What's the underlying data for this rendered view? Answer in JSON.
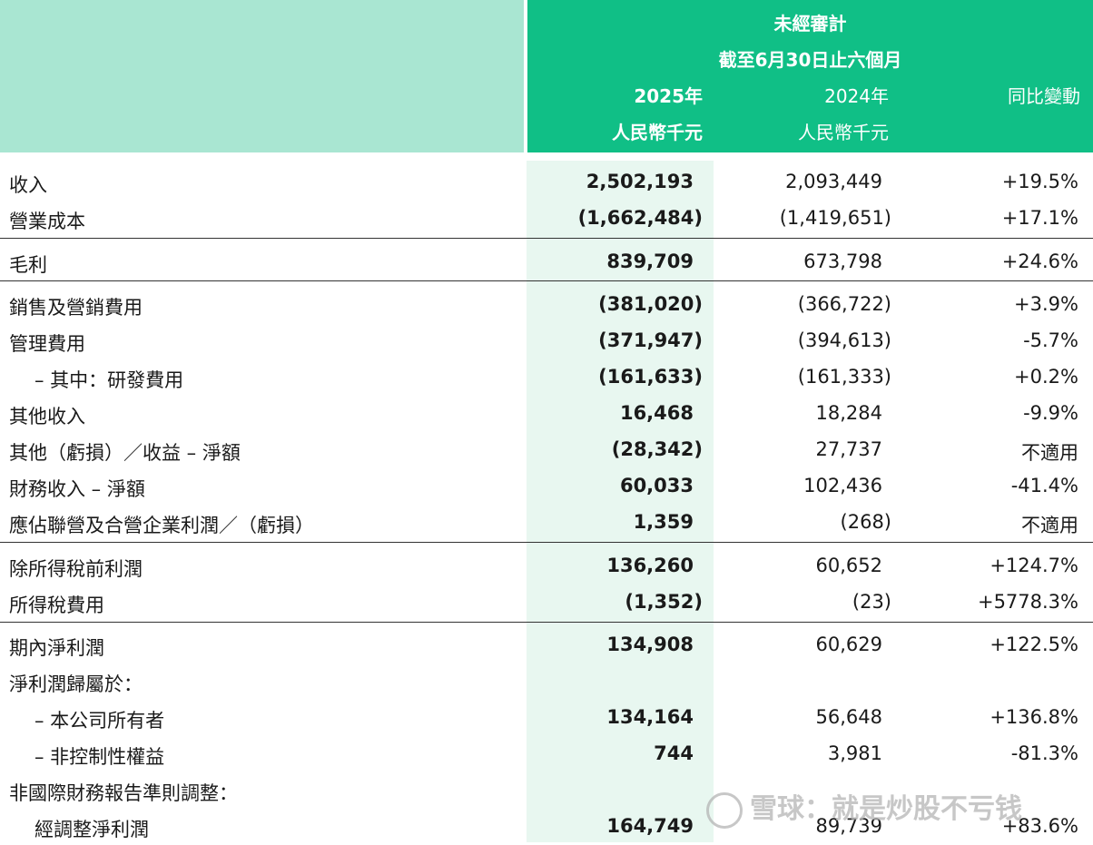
{
  "header": {
    "line1": "未經審計",
    "line2": "截至6月30日止六個月",
    "col_2025_year": "2025年",
    "col_2025_unit": "人民幣千元",
    "col_2024_year": "2024年",
    "col_2024_unit": "人民幣千元",
    "col_yoy": "同比變動"
  },
  "rows": [
    {
      "label": "收入",
      "v2025": "2,502,193",
      "v2024": "2,093,449",
      "yoy": "+19.5%"
    },
    {
      "label": "營業成本",
      "v2025": "(1,662,484)",
      "v2024": "(1,419,651)",
      "yoy": "+17.1%"
    },
    {
      "label": "毛利",
      "v2025": "839,709",
      "v2024": "673,798",
      "yoy": "+24.6%"
    },
    {
      "label": "銷售及營銷費用",
      "v2025": "(381,020)",
      "v2024": "(366,722)",
      "yoy": "+3.9%"
    },
    {
      "label": "管理費用",
      "v2025": "(371,947)",
      "v2024": "(394,613)",
      "yoy": "-5.7%"
    },
    {
      "label": "– 其中：研發費用",
      "v2025": "(161,633)",
      "v2024": "(161,333)",
      "yoy": "+0.2%"
    },
    {
      "label": "其他收入",
      "v2025": "16,468",
      "v2024": "18,284",
      "yoy": "-9.9%"
    },
    {
      "label": "其他（虧損）／收益 – 淨額",
      "v2025": "(28,342)",
      "v2024": "27,737",
      "yoy": "不適用"
    },
    {
      "label": "財務收入 – 淨額",
      "v2025": "60,033",
      "v2024": "102,436",
      "yoy": "-41.4%"
    },
    {
      "label": "應佔聯營及合營企業利潤／（虧損）",
      "v2025": "1,359",
      "v2024": "(268)",
      "yoy": "不適用"
    },
    {
      "label": "除所得稅前利潤",
      "v2025": "136,260",
      "v2024": "60,652",
      "yoy": "+124.7%"
    },
    {
      "label": "所得稅費用",
      "v2025": "(1,352)",
      "v2024": "(23)",
      "yoy": "+5778.3%"
    },
    {
      "label": "期內淨利潤",
      "v2025": "134,908",
      "v2024": "60,629",
      "yoy": "+122.5%"
    },
    {
      "label": "淨利潤歸屬於：",
      "v2025": "",
      "v2024": "",
      "yoy": ""
    },
    {
      "label": "– 本公司所有者",
      "v2025": "134,164",
      "v2024": "56,648",
      "yoy": "+136.8%"
    },
    {
      "label": "– 非控制性權益",
      "v2025": "744",
      "v2024": "3,981",
      "yoy": "-81.3%"
    },
    {
      "label": "非國際財務報告準則調整：",
      "v2025": "",
      "v2024": "",
      "yoy": ""
    },
    {
      "label": "經調整淨利潤",
      "v2025": "164,749",
      "v2024": "89,739",
      "yoy": "+83.6%"
    }
  ],
  "watermark": {
    "text": "雪球：就是炒股不亏钱"
  }
}
